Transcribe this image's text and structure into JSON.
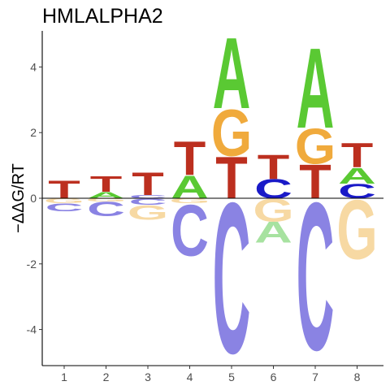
{
  "chart_data": {
    "type": "sequence-logo",
    "title": "HMLALPHA2",
    "ylabel": "−ΔΔG/RT",
    "xlabel": "",
    "ylim": [
      -5.1,
      5.1
    ],
    "yticks": [
      "-4",
      "-2",
      "0",
      "2",
      "4"
    ],
    "xticks": [
      "1",
      "2",
      "3",
      "4",
      "5",
      "6",
      "7",
      "8"
    ],
    "colors": {
      "A": "#5ac933",
      "C": "#8a83e3",
      "G": "#f0aa3c",
      "T": "#bc2f1f",
      "C_dark": "#1a1ac8"
    },
    "positions": [
      {
        "pos": 1,
        "above": [
          {
            "letter": "T",
            "h": 0.55,
            "color": "#bc2f1f"
          }
        ],
        "below": [
          {
            "letter": "G",
            "h": 0.15,
            "color": "#f7d9a3"
          },
          {
            "letter": "C",
            "h": 0.25,
            "color": "#8a83e3"
          }
        ]
      },
      {
        "pos": 2,
        "above": [
          {
            "letter": "A",
            "h": 0.2,
            "color": "#5ac933"
          },
          {
            "letter": "T",
            "h": 0.5,
            "color": "#bc2f1f"
          }
        ],
        "below": [
          {
            "letter": "G",
            "h": 0.1,
            "color": "#f7d9a3"
          },
          {
            "letter": "C",
            "h": 0.45,
            "color": "#8a83e3"
          }
        ]
      },
      {
        "pos": 3,
        "above": [
          {
            "letter": "C",
            "h": 0.1,
            "color": "#8a83e3"
          },
          {
            "letter": "T",
            "h": 0.7,
            "color": "#bc2f1f"
          }
        ],
        "below": [
          {
            "letter": "C",
            "h": 0.2,
            "color": "#8a83e3"
          },
          {
            "letter": "G",
            "h": 0.45,
            "color": "#f7d9a3"
          }
        ]
      },
      {
        "pos": 4,
        "above": [
          {
            "letter": "A",
            "h": 0.7,
            "color": "#5ac933"
          },
          {
            "letter": "T",
            "h": 1.05,
            "color": "#bc2f1f"
          }
        ],
        "below": [
          {
            "letter": "G",
            "h": 0.15,
            "color": "#f7d9a3"
          },
          {
            "letter": "C",
            "h": 1.6,
            "color": "#8a83e3"
          }
        ]
      },
      {
        "pos": 5,
        "above": [
          {
            "letter": "T",
            "h": 1.3,
            "color": "#bc2f1f"
          },
          {
            "letter": "G",
            "h": 1.45,
            "color": "#f0aa3c"
          },
          {
            "letter": "A",
            "h": 2.2,
            "color": "#5ac933"
          }
        ],
        "below": [
          {
            "letter": "C",
            "h": 4.7,
            "color": "#8a83e3"
          }
        ]
      },
      {
        "pos": 6,
        "above": [
          {
            "letter": "C",
            "h": 0.6,
            "color": "#1a1ac8"
          },
          {
            "letter": "T",
            "h": 0.75,
            "color": "#bc2f1f"
          }
        ],
        "below": [
          {
            "letter": "G",
            "h": 0.7,
            "color": "#f7d9a3"
          },
          {
            "letter": "A",
            "h": 0.65,
            "color": "#a7e2a0"
          }
        ]
      },
      {
        "pos": 7,
        "above": [
          {
            "letter": "T",
            "h": 1.05,
            "color": "#bc2f1f"
          },
          {
            "letter": "G",
            "h": 1.1,
            "color": "#f0aa3c"
          },
          {
            "letter": "A",
            "h": 2.5,
            "color": "#5ac933"
          }
        ],
        "below": [
          {
            "letter": "C",
            "h": 4.6,
            "color": "#8a83e3"
          }
        ]
      },
      {
        "pos": 8,
        "above": [
          {
            "letter": "C",
            "h": 0.45,
            "color": "#1a1ac8"
          },
          {
            "letter": "A",
            "h": 0.5,
            "color": "#5ac933"
          },
          {
            "letter": "T",
            "h": 0.75,
            "color": "#bc2f1f"
          }
        ],
        "below": [
          {
            "letter": "G",
            "h": 1.85,
            "color": "#f7d9a3"
          }
        ]
      }
    ]
  }
}
